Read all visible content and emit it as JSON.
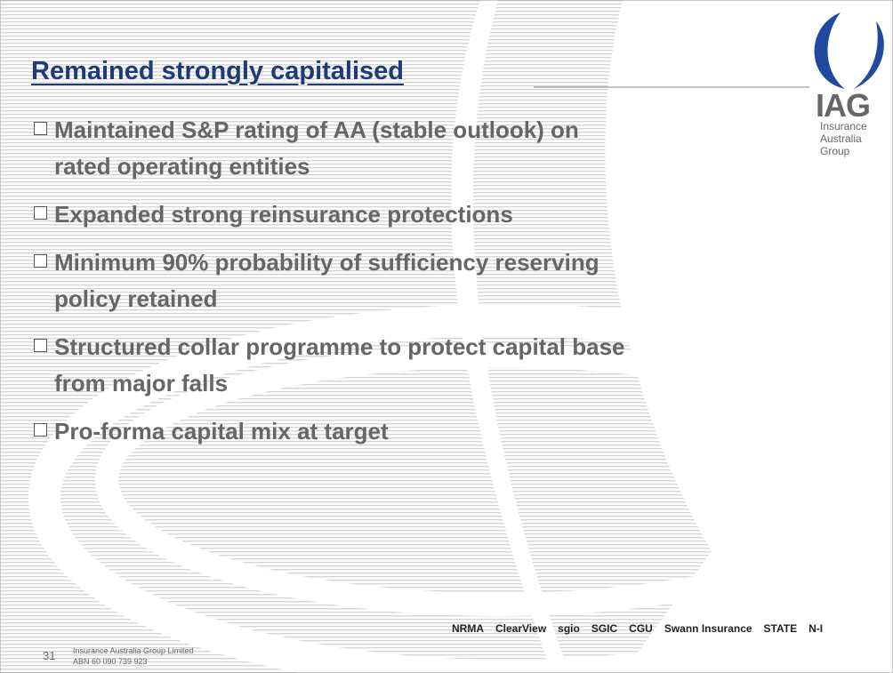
{
  "slide": {
    "title": "Remained strongly capitalised",
    "bullets": [
      [
        "Maintained S&P rating of AA (stable outlook) on",
        "rated operating entities"
      ],
      [
        "Expanded strong reinsurance protections"
      ],
      [
        "Minimum 90% probability of sufficiency reserving",
        "policy retained"
      ],
      [
        "Structured collar programme to protect capital base",
        "from major falls"
      ],
      [
        "Pro-forma capital mix at target"
      ]
    ],
    "logo": {
      "name": "IAG",
      "lines": [
        "Insurance",
        "Australia",
        "Group"
      ]
    },
    "footer": {
      "page_number": "31",
      "company": "Insurance Australia Group Limited",
      "abn": "ABN 60 090 739 923"
    },
    "brands": [
      "NRMA",
      "ClearView",
      "sgio",
      "SGIC",
      "CGU",
      "Swann Insurance",
      "STATE",
      "N-I"
    ]
  }
}
